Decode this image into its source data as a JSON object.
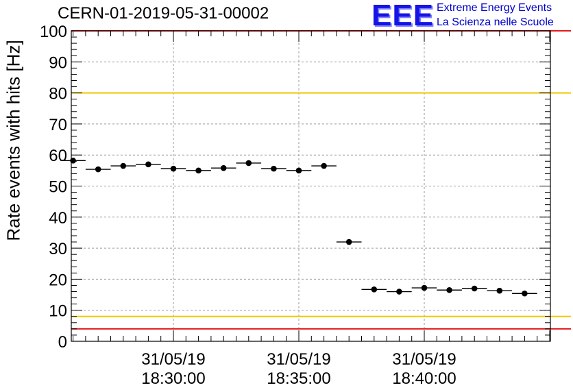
{
  "header": {
    "title": "CERN-01-2019-05-31-00002",
    "logo_text": "EEE",
    "logo_line1": "Extreme Energy Events",
    "logo_line2": "La Scienza nelle Scuole"
  },
  "chart_data": {
    "type": "scatter",
    "ylabel": "Rate events with hits [Hz]",
    "ylim": [
      0,
      100
    ],
    "y_ticks": [
      "0",
      "10",
      "20",
      "30",
      "40",
      "50",
      "60",
      "70",
      "80",
      "90",
      "100"
    ],
    "x_ticks": [
      {
        "date": "31/05/19",
        "time": "18:30:00"
      },
      {
        "date": "31/05/19",
        "time": "18:35:00"
      },
      {
        "date": "31/05/19",
        "time": "18:40:00"
      }
    ],
    "grid": true,
    "reference_lines": [
      {
        "value": 100,
        "color": "#e31a1c"
      },
      {
        "value": 80,
        "color": "#f0c800"
      },
      {
        "value": 8,
        "color": "#f0c800"
      },
      {
        "value": 4,
        "color": "#e31a1c"
      }
    ],
    "points": [
      {
        "t": "18:26:00",
        "y": 58.2
      },
      {
        "t": "18:27:00",
        "y": 55.4
      },
      {
        "t": "18:28:00",
        "y": 56.5
      },
      {
        "t": "18:29:00",
        "y": 57.0
      },
      {
        "t": "18:30:00",
        "y": 55.6
      },
      {
        "t": "18:31:00",
        "y": 55.0
      },
      {
        "t": "18:32:00",
        "y": 55.8
      },
      {
        "t": "18:33:00",
        "y": 57.4
      },
      {
        "t": "18:34:00",
        "y": 55.6
      },
      {
        "t": "18:35:00",
        "y": 55.0
      },
      {
        "t": "18:36:00",
        "y": 56.5
      },
      {
        "t": "18:37:00",
        "y": 32.0
      },
      {
        "t": "18:38:00",
        "y": 16.7
      },
      {
        "t": "18:39:00",
        "y": 16.0
      },
      {
        "t": "18:40:00",
        "y": 17.2
      },
      {
        "t": "18:41:00",
        "y": 16.5
      },
      {
        "t": "18:42:00",
        "y": 17.0
      },
      {
        "t": "18:43:00",
        "y": 16.3
      },
      {
        "t": "18:44:00",
        "y": 15.4
      }
    ],
    "marker_color": "#000000"
  }
}
